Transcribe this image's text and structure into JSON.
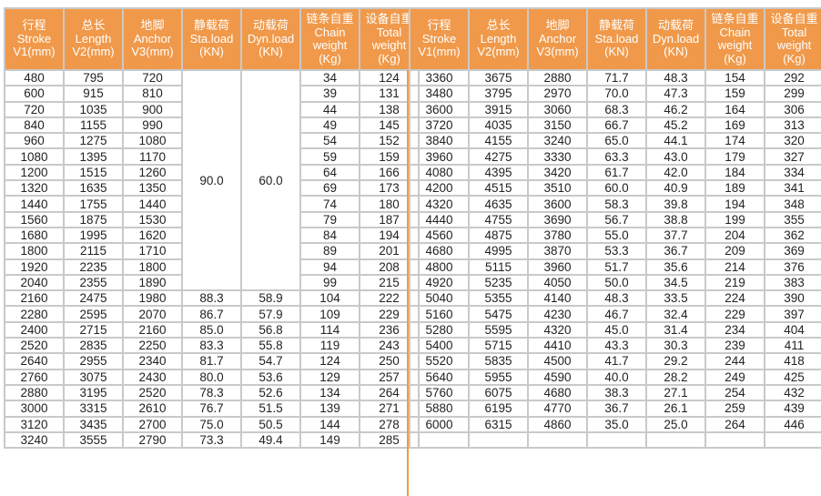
{
  "colors": {
    "header_bg": "#f0994a",
    "header_text": "#ffffff",
    "grid": "#c9c9c9",
    "divider": "#f0994a"
  },
  "headers": [
    [
      "行程",
      "Stroke",
      "V1(mm)"
    ],
    [
      "总长",
      "Length",
      "V2(mm)"
    ],
    [
      "地脚",
      "Anchor",
      "V3(mm)"
    ],
    [
      "静载荷",
      "Sta.load",
      "(KN)"
    ],
    [
      "动载荷",
      "Dyn.load",
      "(KN)"
    ],
    [
      "链条自重",
      "Chain",
      "weight",
      "(Kg)"
    ],
    [
      "设备自重",
      "Total",
      "weight",
      "(Kg)"
    ]
  ],
  "left_table": {
    "merged_sta_load": "90.0",
    "merged_dyn_load": "60.0",
    "rows": [
      [
        "480",
        "795",
        "720",
        "",
        "",
        "34",
        "124"
      ],
      [
        "600",
        "915",
        "810",
        "",
        "",
        "39",
        "131"
      ],
      [
        "720",
        "1035",
        "900",
        "",
        "",
        "44",
        "138"
      ],
      [
        "840",
        "1155",
        "990",
        "",
        "",
        "49",
        "145"
      ],
      [
        "960",
        "1275",
        "1080",
        "",
        "",
        "54",
        "152"
      ],
      [
        "1080",
        "1395",
        "1170",
        "",
        "",
        "59",
        "159"
      ],
      [
        "1200",
        "1515",
        "1260",
        "",
        "",
        "64",
        "166"
      ],
      [
        "1320",
        "1635",
        "1350",
        "",
        "",
        "69",
        "173"
      ],
      [
        "1440",
        "1755",
        "1440",
        "",
        "",
        "74",
        "180"
      ],
      [
        "1560",
        "1875",
        "1530",
        "",
        "",
        "79",
        "187"
      ],
      [
        "1680",
        "1995",
        "1620",
        "",
        "",
        "84",
        "194"
      ],
      [
        "1800",
        "2115",
        "1710",
        "",
        "",
        "89",
        "201"
      ],
      [
        "1920",
        "2235",
        "1800",
        "",
        "",
        "94",
        "208"
      ],
      [
        "2040",
        "2355",
        "1890",
        "",
        "",
        "99",
        "215"
      ],
      [
        "2160",
        "2475",
        "1980",
        "88.3",
        "58.9",
        "104",
        "222"
      ],
      [
        "2280",
        "2595",
        "2070",
        "86.7",
        "57.9",
        "109",
        "229"
      ],
      [
        "2400",
        "2715",
        "2160",
        "85.0",
        "56.8",
        "114",
        "236"
      ],
      [
        "2520",
        "2835",
        "2250",
        "83.3",
        "55.8",
        "119",
        "243"
      ],
      [
        "2640",
        "2955",
        "2340",
        "81.7",
        "54.7",
        "124",
        "250"
      ],
      [
        "2760",
        "3075",
        "2430",
        "80.0",
        "53.6",
        "129",
        "257"
      ],
      [
        "2880",
        "3195",
        "2520",
        "78.3",
        "52.6",
        "134",
        "264"
      ],
      [
        "3000",
        "3315",
        "2610",
        "76.7",
        "51.5",
        "139",
        "271"
      ],
      [
        "3120",
        "3435",
        "2700",
        "75.0",
        "50.5",
        "144",
        "278"
      ],
      [
        "3240",
        "3555",
        "2790",
        "73.3",
        "49.4",
        "149",
        "285"
      ]
    ]
  },
  "right_table": {
    "rows": [
      [
        "3360",
        "3675",
        "2880",
        "71.7",
        "48.3",
        "154",
        "292"
      ],
      [
        "3480",
        "3795",
        "2970",
        "70.0",
        "47.3",
        "159",
        "299"
      ],
      [
        "3600",
        "3915",
        "3060",
        "68.3",
        "46.2",
        "164",
        "306"
      ],
      [
        "3720",
        "4035",
        "3150",
        "66.7",
        "45.2",
        "169",
        "313"
      ],
      [
        "3840",
        "4155",
        "3240",
        "65.0",
        "44.1",
        "174",
        "320"
      ],
      [
        "3960",
        "4275",
        "3330",
        "63.3",
        "43.0",
        "179",
        "327"
      ],
      [
        "4080",
        "4395",
        "3420",
        "61.7",
        "42.0",
        "184",
        "334"
      ],
      [
        "4200",
        "4515",
        "3510",
        "60.0",
        "40.9",
        "189",
        "341"
      ],
      [
        "4320",
        "4635",
        "3600",
        "58.3",
        "39.8",
        "194",
        "348"
      ],
      [
        "4440",
        "4755",
        "3690",
        "56.7",
        "38.8",
        "199",
        "355"
      ],
      [
        "4560",
        "4875",
        "3780",
        "55.0",
        "37.7",
        "204",
        "362"
      ],
      [
        "4680",
        "4995",
        "3870",
        "53.3",
        "36.7",
        "209",
        "369"
      ],
      [
        "4800",
        "5115",
        "3960",
        "51.7",
        "35.6",
        "214",
        "376"
      ],
      [
        "4920",
        "5235",
        "4050",
        "50.0",
        "34.5",
        "219",
        "383"
      ],
      [
        "5040",
        "5355",
        "4140",
        "48.3",
        "33.5",
        "224",
        "390"
      ],
      [
        "5160",
        "5475",
        "4230",
        "46.7",
        "32.4",
        "229",
        "397"
      ],
      [
        "5280",
        "5595",
        "4320",
        "45.0",
        "31.4",
        "234",
        "404"
      ],
      [
        "5400",
        "5715",
        "4410",
        "43.3",
        "30.3",
        "239",
        "411"
      ],
      [
        "5520",
        "5835",
        "4500",
        "41.7",
        "29.2",
        "244",
        "418"
      ],
      [
        "5640",
        "5955",
        "4590",
        "40.0",
        "28.2",
        "249",
        "425"
      ],
      [
        "5760",
        "6075",
        "4680",
        "38.3",
        "27.1",
        "254",
        "432"
      ],
      [
        "5880",
        "6195",
        "4770",
        "36.7",
        "26.1",
        "259",
        "439"
      ],
      [
        "6000",
        "6315",
        "4860",
        "35.0",
        "25.0",
        "264",
        "446"
      ],
      [
        "",
        "",
        "",
        "",
        "",
        "",
        ""
      ]
    ]
  }
}
